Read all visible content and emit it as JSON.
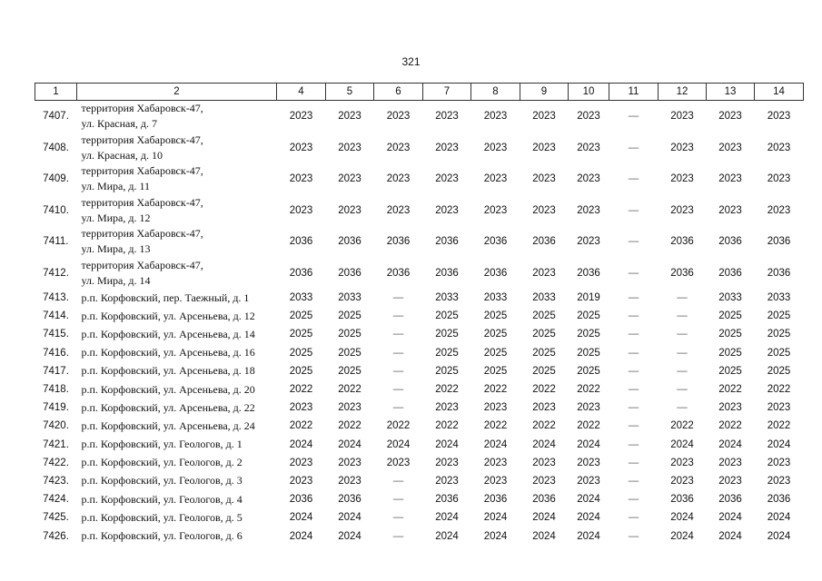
{
  "page_number": "321",
  "header": [
    "1",
    "2",
    "4",
    "5",
    "6",
    "7",
    "8",
    "9",
    "10",
    "11",
    "12",
    "13",
    "14"
  ],
  "rows": [
    [
      "7407.",
      "территория Хабаровск-47,\nул. Красная, д. 7",
      "2023",
      "2023",
      "2023",
      "2023",
      "2023",
      "2023",
      "2023",
      "—",
      "2023",
      "2023",
      "2023"
    ],
    [
      "7408.",
      "территория Хабаровск-47,\nул. Красная, д. 10",
      "2023",
      "2023",
      "2023",
      "2023",
      "2023",
      "2023",
      "2023",
      "—",
      "2023",
      "2023",
      "2023"
    ],
    [
      "7409.",
      "территория Хабаровск-47,\nул. Мира, д. 11",
      "2023",
      "2023",
      "2023",
      "2023",
      "2023",
      "2023",
      "2023",
      "—",
      "2023",
      "2023",
      "2023"
    ],
    [
      "7410.",
      "территория Хабаровск-47,\nул. Мира, д. 12",
      "2023",
      "2023",
      "2023",
      "2023",
      "2023",
      "2023",
      "2023",
      "—",
      "2023",
      "2023",
      "2023"
    ],
    [
      "7411.",
      "территория Хабаровск-47,\nул. Мира, д. 13",
      "2036",
      "2036",
      "2036",
      "2036",
      "2036",
      "2036",
      "2023",
      "—",
      "2036",
      "2036",
      "2036"
    ],
    [
      "7412.",
      "территория Хабаровск-47,\nул. Мира, д. 14",
      "2036",
      "2036",
      "2036",
      "2036",
      "2036",
      "2023",
      "2036",
      "—",
      "2036",
      "2036",
      "2036"
    ],
    [
      "7413.",
      "р.п. Корфовский, пер. Таежный, д. 1",
      "2033",
      "2033",
      "—",
      "2033",
      "2033",
      "2033",
      "2019",
      "—",
      "—",
      "2033",
      "2033"
    ],
    [
      "7414.",
      "р.п. Корфовский, ул. Арсеньева, д. 12",
      "2025",
      "2025",
      "—",
      "2025",
      "2025",
      "2025",
      "2025",
      "—",
      "—",
      "2025",
      "2025"
    ],
    [
      "7415.",
      "р.п. Корфовский, ул. Арсеньева, д. 14",
      "2025",
      "2025",
      "—",
      "2025",
      "2025",
      "2025",
      "2025",
      "—",
      "—",
      "2025",
      "2025"
    ],
    [
      "7416.",
      "р.п. Корфовский, ул. Арсеньева, д. 16",
      "2025",
      "2025",
      "—",
      "2025",
      "2025",
      "2025",
      "2025",
      "—",
      "—",
      "2025",
      "2025"
    ],
    [
      "7417.",
      "р.п. Корфовский, ул. Арсеньева, д. 18",
      "2025",
      "2025",
      "—",
      "2025",
      "2025",
      "2025",
      "2025",
      "—",
      "—",
      "2025",
      "2025"
    ],
    [
      "7418.",
      "р.п. Корфовский, ул. Арсеньева, д. 20",
      "2022",
      "2022",
      "—",
      "2022",
      "2022",
      "2022",
      "2022",
      "—",
      "—",
      "2022",
      "2022"
    ],
    [
      "7419.",
      "р.п. Корфовский, ул. Арсеньева, д. 22",
      "2023",
      "2023",
      "—",
      "2023",
      "2023",
      "2023",
      "2023",
      "—",
      "—",
      "2023",
      "2023"
    ],
    [
      "7420.",
      "р.п. Корфовский, ул. Арсеньева, д. 24",
      "2022",
      "2022",
      "2022",
      "2022",
      "2022",
      "2022",
      "2022",
      "—",
      "2022",
      "2022",
      "2022"
    ],
    [
      "7421.",
      "р.п. Корфовский, ул. Геологов, д. 1",
      "2024",
      "2024",
      "2024",
      "2024",
      "2024",
      "2024",
      "2024",
      "—",
      "2024",
      "2024",
      "2024"
    ],
    [
      "7422.",
      "р.п. Корфовский, ул. Геологов, д. 2",
      "2023",
      "2023",
      "2023",
      "2023",
      "2023",
      "2023",
      "2023",
      "—",
      "2023",
      "2023",
      "2023"
    ],
    [
      "7423.",
      "р.п. Корфовский, ул. Геологов, д. 3",
      "2023",
      "2023",
      "—",
      "2023",
      "2023",
      "2023",
      "2023",
      "—",
      "2023",
      "2023",
      "2023"
    ],
    [
      "7424.",
      "р.п. Корфовский, ул. Геологов, д. 4",
      "2036",
      "2036",
      "—",
      "2036",
      "2036",
      "2036",
      "2024",
      "—",
      "2036",
      "2036",
      "2036"
    ],
    [
      "7425.",
      "р.п. Корфовский, ул. Геологов, д. 5",
      "2024",
      "2024",
      "—",
      "2024",
      "2024",
      "2024",
      "2024",
      "—",
      "2024",
      "2024",
      "2024"
    ],
    [
      "7426.",
      "р.п. Корфовский, ул. Геологов, д. 6",
      "2024",
      "2024",
      "—",
      "2024",
      "2024",
      "2024",
      "2024",
      "—",
      "2024",
      "2024",
      "2024"
    ]
  ]
}
